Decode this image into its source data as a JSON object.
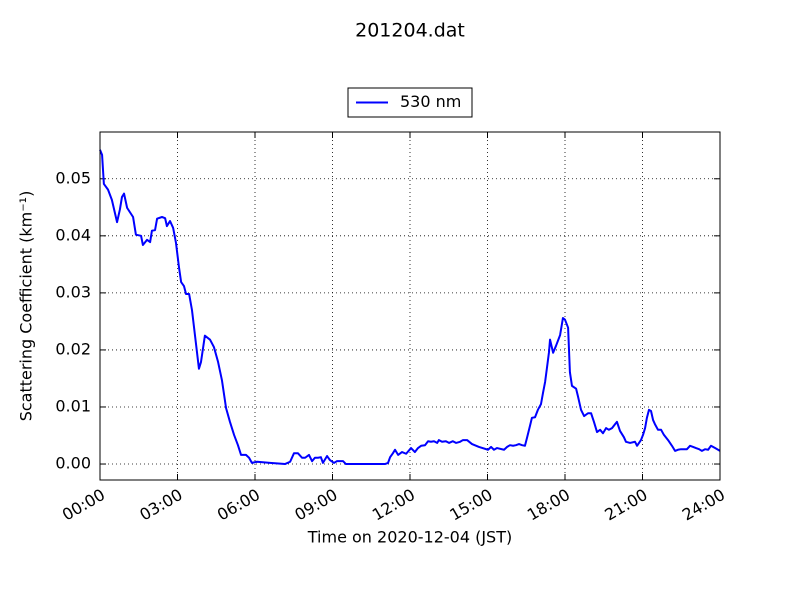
{
  "chart_data": {
    "type": "line",
    "title": "201204.dat",
    "xlabel": "Time on 2020-12-04 (JST)",
    "ylabel": "Scattering Coefficient (km⁻¹)",
    "legend": "upper center",
    "grid": true,
    "xlim": [
      0,
      24
    ],
    "xticks": [
      {
        "value": 0,
        "label": "00:00"
      },
      {
        "value": 3,
        "label": "03:00"
      },
      {
        "value": 6,
        "label": "06:00"
      },
      {
        "value": 9,
        "label": "09:00"
      },
      {
        "value": 12,
        "label": "12:00"
      },
      {
        "value": 15,
        "label": "15:00"
      },
      {
        "value": 18,
        "label": "18:00"
      },
      {
        "value": 21,
        "label": "21:00"
      },
      {
        "value": 24,
        "label": "24:00"
      }
    ],
    "ylim": [
      -0.0028,
      0.0582
    ],
    "yticks": [
      {
        "value": 0,
        "label": "0.00"
      },
      {
        "value": 0.01,
        "label": "0.01"
      },
      {
        "value": 0.02,
        "label": "0.02"
      },
      {
        "value": 0.03,
        "label": "0.03"
      },
      {
        "value": 0.04,
        "label": "0.04"
      },
      {
        "value": 0.05,
        "label": "0.05"
      }
    ],
    "x": [
      0,
      0.08,
      0.15,
      0.31,
      0.46,
      0.66,
      0.77,
      0.85,
      0.93,
      1.05,
      1.28,
      1.39,
      1.59,
      1.66,
      1.82,
      1.94,
      2.01,
      2.13,
      2.21,
      2.4,
      2.52,
      2.59,
      2.71,
      2.83,
      2.94,
      3.06,
      3.14,
      3.25,
      3.33,
      3.45,
      3.56,
      3.72,
      3.83,
      3.91,
      4.06,
      4.26,
      4.41,
      4.57,
      4.72,
      4.88,
      5.03,
      5.19,
      5.34,
      5.46,
      5.65,
      5.77,
      5.88,
      6.08,
      6.58,
      7.16,
      7.36,
      7.51,
      7.66,
      7.82,
      7.94,
      8.09,
      8.21,
      8.32,
      8.44,
      8.55,
      8.63,
      8.79,
      8.9,
      9.06,
      9.17,
      9.41,
      9.52,
      11.03,
      11.15,
      11.23,
      11.34,
      11.42,
      11.54,
      11.69,
      11.85,
      12.04,
      12.19,
      12.31,
      12.43,
      12.58,
      12.7,
      12.81,
      12.93,
      13.05,
      13.12,
      13.24,
      13.39,
      13.51,
      13.66,
      13.78,
      13.94,
      14.05,
      14.21,
      14.4,
      14.67,
      15.02,
      15.14,
      15.25,
      15.37,
      15.64,
      15.76,
      15.87,
      15.99,
      16.1,
      16.22,
      16.34,
      16.45,
      16.53,
      16.65,
      16.72,
      16.84,
      16.95,
      17.07,
      17.15,
      17.23,
      17.3,
      17.38,
      17.42,
      17.54,
      17.65,
      17.81,
      17.92,
      18.0,
      18.12,
      18.19,
      18.27,
      18.43,
      18.5,
      18.62,
      18.74,
      18.89,
      19.01,
      19.12,
      19.24,
      19.36,
      19.47,
      19.59,
      19.7,
      19.82,
      19.94,
      20.01,
      20.13,
      20.28,
      20.36,
      20.52,
      20.71,
      20.79,
      20.94,
      21.02,
      21.1,
      21.17,
      21.25,
      21.33,
      21.41,
      21.48,
      21.6,
      21.72,
      21.83,
      21.99,
      22.14,
      22.26,
      22.37,
      22.49,
      22.72,
      22.84,
      22.96,
      23.07,
      23.19,
      23.3,
      23.42,
      23.54,
      23.65,
      23.81,
      24.0
    ],
    "series": [
      {
        "name": "530 nm",
        "color": "#0000ff",
        "values": [
          0.0551,
          0.0542,
          0.0491,
          0.0481,
          0.0463,
          0.0424,
          0.0446,
          0.0468,
          0.0474,
          0.0449,
          0.0433,
          0.0402,
          0.04,
          0.0384,
          0.0393,
          0.0389,
          0.0409,
          0.041,
          0.043,
          0.0433,
          0.0431,
          0.0417,
          0.0426,
          0.0414,
          0.0388,
          0.0344,
          0.0319,
          0.0312,
          0.0298,
          0.0298,
          0.027,
          0.0209,
          0.0167,
          0.0179,
          0.0225,
          0.0218,
          0.0205,
          0.0179,
          0.0147,
          0.0098,
          0.0074,
          0.0051,
          0.0033,
          0.0016,
          0.0016,
          0.0011,
          0.0002,
          0.0004,
          0.0002,
          0.0,
          0.0004,
          0.0019,
          0.0019,
          0.0011,
          0.0011,
          0.0016,
          0.0005,
          0.0011,
          0.0011,
          0.0012,
          0.0002,
          0.0014,
          0.0007,
          0.0002,
          0.0005,
          0.0005,
          0.0,
          0.0,
          0.0002,
          0.0012,
          0.0019,
          0.0025,
          0.0016,
          0.0021,
          0.0018,
          0.0028,
          0.0021,
          0.0028,
          0.0032,
          0.0033,
          0.004,
          0.0039,
          0.004,
          0.0037,
          0.0042,
          0.0039,
          0.004,
          0.0037,
          0.004,
          0.0037,
          0.0039,
          0.0042,
          0.0042,
          0.0035,
          0.003,
          0.0025,
          0.003,
          0.0025,
          0.0028,
          0.0025,
          0.003,
          0.0033,
          0.0032,
          0.0033,
          0.0035,
          0.0033,
          0.0032,
          0.0046,
          0.0068,
          0.0081,
          0.0082,
          0.0095,
          0.0105,
          0.0125,
          0.0144,
          0.0168,
          0.0196,
          0.0218,
          0.0195,
          0.0207,
          0.0226,
          0.0256,
          0.0253,
          0.0239,
          0.0161,
          0.0137,
          0.0132,
          0.0119,
          0.0095,
          0.0084,
          0.0089,
          0.0089,
          0.0074,
          0.0056,
          0.006,
          0.0054,
          0.0063,
          0.006,
          0.0063,
          0.007,
          0.0074,
          0.0058,
          0.0047,
          0.0039,
          0.0037,
          0.0039,
          0.0032,
          0.0042,
          0.0051,
          0.0063,
          0.0081,
          0.0095,
          0.0093,
          0.0077,
          0.007,
          0.006,
          0.006,
          0.0051,
          0.0042,
          0.0032,
          0.0023,
          0.0025,
          0.0026,
          0.0026,
          0.0032,
          0.003,
          0.0028,
          0.0026,
          0.0023,
          0.0026,
          0.0025,
          0.0032,
          0.0028,
          0.0023
        ]
      }
    ]
  }
}
